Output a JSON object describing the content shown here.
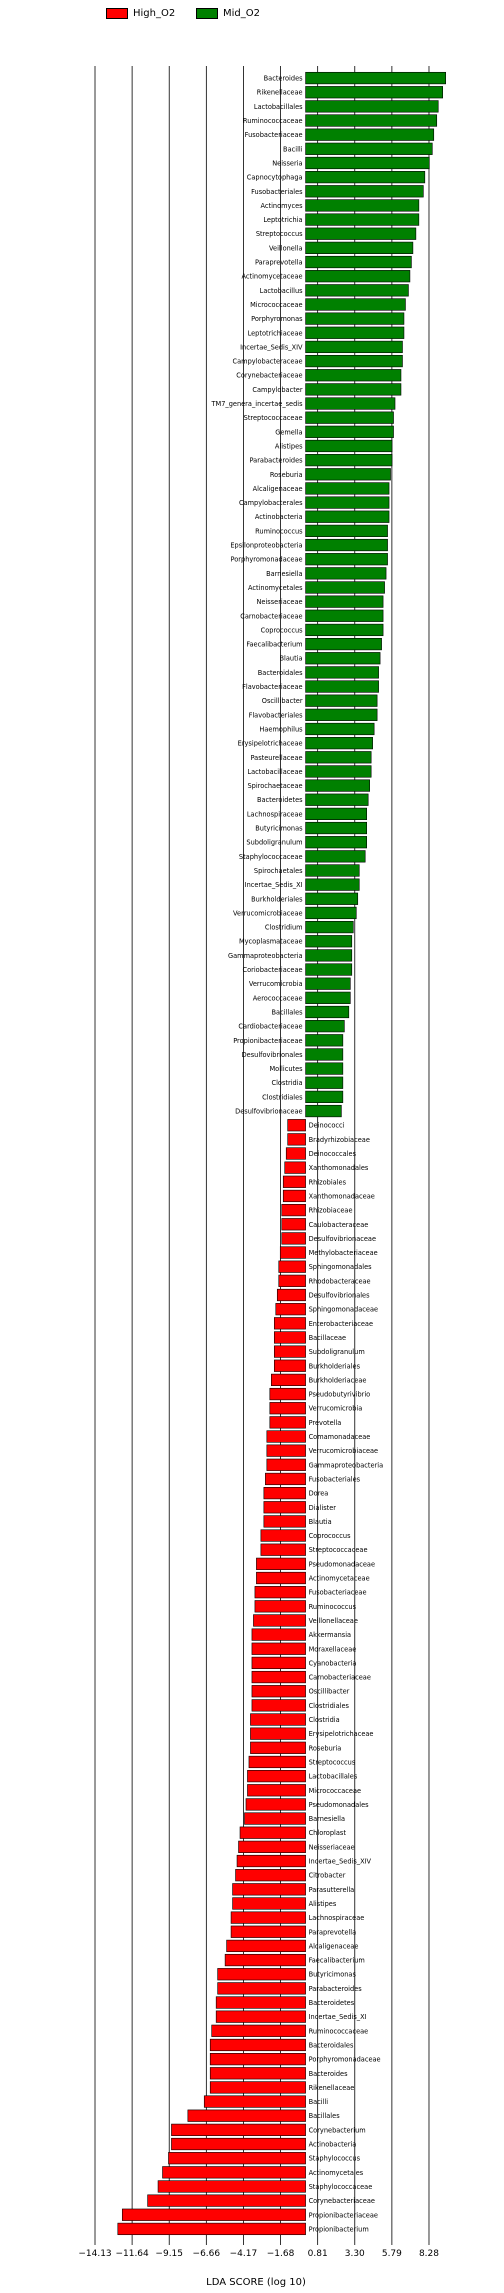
{
  "chart_data": {
    "type": "bar",
    "orientation": "horizontal",
    "xlabel": "LDA SCORE (log 10)",
    "xticks": [
      -14.13,
      -11.64,
      -9.15,
      -6.66,
      -4.17,
      -1.68,
      0.81,
      3.3,
      5.79,
      8.28
    ],
    "xtick_labels": [
      "−14.13",
      "−11.64",
      "−9.15",
      "−6.66",
      "−4.17",
      "−1.68",
      "0.81",
      "3.30",
      "5.79",
      "8.28"
    ],
    "xlim": [
      -14.6,
      11.3
    ],
    "grid": "vertical lines at x ticks",
    "legend": {
      "placement": "top",
      "entries": [
        {
          "name": "High_O2",
          "color": "#ff0000"
        },
        {
          "name": "Mid_O2",
          "color": "#008000"
        }
      ]
    },
    "series": [
      {
        "name": "Mid_O2",
        "color": "#008000",
        "categories": [
          "Bacteroides",
          "Rikenellaceae",
          "Lactobacillales",
          "Ruminococcaceae",
          "Fusobacteriaceae",
          "Bacilli",
          "Neisseria",
          "Capnocytophaga",
          "Fusobacteriales",
          "Actinomyces",
          "Leptotrichia",
          "Streptococcus",
          "Veillonella",
          "Paraprevotella",
          "Actinomycetaceae",
          "Lactobacillus",
          "Micrococcaceae",
          "Porphyromonas",
          "Leptotrichiaceae",
          "Incertae_Sedis_XIV",
          "Campylobacteraceae",
          "Corynebacteriaceae",
          "Campylobacter",
          "TM7_genera_incertae_sedis",
          "Streptococcaceae",
          "Gemella",
          "Alistipes",
          "Parabacteroides",
          "Roseburia",
          "Alcaligenaceae",
          "Campylobacterales",
          "Actinobacteria",
          "Ruminococcus",
          "Epsilonproteobacteria",
          "Porphyromonadaceae",
          "Barnesiella",
          "Actinomycetales",
          "Neisseriaceae",
          "Carnobacteriaceae",
          "Coprococcus",
          "Faecalibacterium",
          "Blautia",
          "Bacteroidales",
          "Flavobacteriaceae",
          "Oscillibacter",
          "Flavobacteriales",
          "Haemophilus",
          "Erysipelotrichaceae",
          "Pasteurellaceae",
          "Lactobacillaceae",
          "Spirochaetaceae",
          "Bacteroidetes",
          "Lachnospiraceae",
          "Butyricimonas",
          "Subdoligranulum",
          "Staphylococcaceae",
          "Spirochaetales",
          "Incertae_Sedis_XI",
          "Burkholderiales",
          "Verrucomicrobiaceae",
          "Clostridium",
          "Mycoplasmataceae",
          "Gammaproteobacteria",
          "Coriobacteriaceae",
          "Verrucomicrobia",
          "Aerococcaceae",
          "Bacillales",
          "Cardiobacteriaceae",
          "Propionibacteriaceae",
          "Desulfovibrionales",
          "Mollicutes",
          "Clostridia",
          "Clostridiales",
          "Desulfovibrionaceae"
        ],
        "values": [
          9.4,
          9.2,
          8.9,
          8.8,
          8.6,
          8.5,
          8.3,
          8.0,
          7.9,
          7.6,
          7.6,
          7.4,
          7.2,
          7.1,
          7.0,
          6.9,
          6.7,
          6.6,
          6.6,
          6.5,
          6.5,
          6.4,
          6.4,
          6.0,
          5.9,
          5.9,
          5.8,
          5.8,
          5.7,
          5.6,
          5.6,
          5.6,
          5.5,
          5.5,
          5.5,
          5.4,
          5.3,
          5.2,
          5.2,
          5.2,
          5.1,
          5.0,
          4.9,
          4.9,
          4.8,
          4.8,
          4.6,
          4.5,
          4.4,
          4.4,
          4.3,
          4.2,
          4.1,
          4.1,
          4.1,
          4.0,
          3.6,
          3.6,
          3.5,
          3.4,
          3.2,
          3.1,
          3.1,
          3.1,
          3.0,
          3.0,
          2.9,
          2.6,
          2.5,
          2.5,
          2.5,
          2.5,
          2.5,
          2.4
        ]
      },
      {
        "name": "High_O2",
        "color": "#ff0000",
        "categories": [
          "Deinococci",
          "Bradyrhizobiaceae",
          "Deinococcales",
          "Xanthomonadales",
          "Rhizobiales",
          "Xanthomonadaceae",
          "Rhizobiaceae",
          "Caulobacteraceae",
          "Desulfovibrionaceae",
          "Methylobacteriaceae",
          "Sphingomonadales",
          "Rhodobacteraceae",
          "Desulfovibrionales",
          "Sphingomonadaceae",
          "Enterobacteriaceae",
          "Bacillaceae",
          "Subdoligranulum",
          "Burkholderiales",
          "Burkholderiaceae",
          "Pseudobutyrivibrio",
          "Verrucomicrobia",
          "Prevotella",
          "Comamonadaceae",
          "Verrucomicrobiaceae",
          "Gammaproteobacteria",
          "Fusobacteriales",
          "Dorea",
          "Dialister",
          "Blautia",
          "Coprococcus",
          "Streptococcaceae",
          "Pseudomonadaceae",
          "Actinomycetaceae",
          "Fusobacteriaceae",
          "Ruminococcus",
          "Veillonellaceae",
          "Akkermansia",
          "Moraxellaceae",
          "Cyanobacteria",
          "Carnobacteriaceae",
          "Oscillibacter",
          "Clostridiales",
          "Clostridia",
          "Erysipelotrichaceae",
          "Roseburia",
          "Streptococcus",
          "Lactobacillales",
          "Micrococcaceae",
          "Pseudomonadales",
          "Barnesiella",
          "Chloroplast",
          "Neisseriaceae",
          "Incertae_Sedis_XIV",
          "Citrobacter",
          "Parasutterella",
          "Alistipes",
          "Lachnospiraceae",
          "Paraprevotella",
          "Alcaligenaceae",
          "Faecalibacterium",
          "Butyricimonas",
          "Parabacteroides",
          "Bacteroidetes",
          "Incertae_Sedis_XI",
          "Ruminococcaceae",
          "Bacteroidales",
          "Porphyromonadaceae",
          "Bacteroides",
          "Rikenellaceae",
          "Bacilli",
          "Bacillales",
          "Corynebacterium",
          "Actinobacteria",
          "Staphylococcus",
          "Actinomycetales",
          "Staphylococcaceae",
          "Corynebacteriaceae",
          "Propionibacteriaceae",
          "Propionibacterium"
        ],
        "values": [
          -1.2,
          -1.2,
          -1.3,
          -1.4,
          -1.5,
          -1.5,
          -1.6,
          -1.6,
          -1.6,
          -1.7,
          -1.8,
          -1.8,
          -1.9,
          -2.0,
          -2.1,
          -2.1,
          -2.1,
          -2.1,
          -2.3,
          -2.4,
          -2.4,
          -2.4,
          -2.6,
          -2.6,
          -2.6,
          -2.7,
          -2.8,
          -2.8,
          -2.8,
          -3.0,
          -3.0,
          -3.3,
          -3.3,
          -3.4,
          -3.4,
          -3.5,
          -3.6,
          -3.6,
          -3.6,
          -3.6,
          -3.6,
          -3.6,
          -3.7,
          -3.7,
          -3.7,
          -3.8,
          -3.9,
          -3.9,
          -4.0,
          -4.1,
          -4.4,
          -4.5,
          -4.6,
          -4.7,
          -4.9,
          -4.9,
          -5.0,
          -5.0,
          -5.3,
          -5.4,
          -5.9,
          -5.9,
          -6.0,
          -6.0,
          -6.3,
          -6.4,
          -6.4,
          -6.4,
          -6.4,
          -6.8,
          -7.9,
          -9.0,
          -9.0,
          -9.2,
          -9.6,
          -9.9,
          -10.6,
          -12.3,
          -12.6
        ]
      }
    ]
  }
}
